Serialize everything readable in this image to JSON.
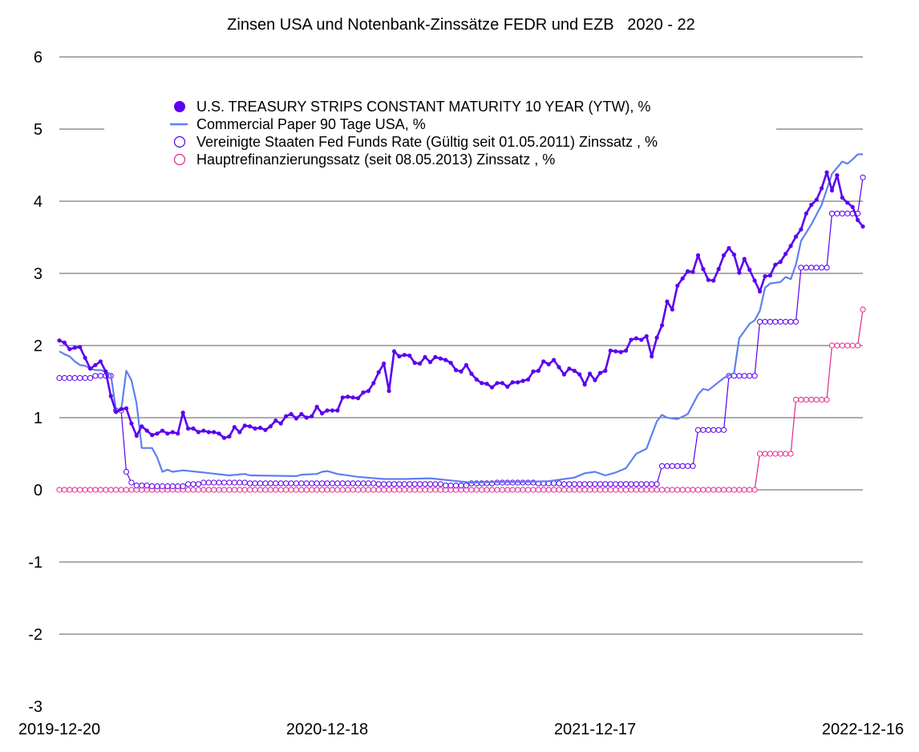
{
  "chart_data": {
    "type": "line",
    "title": "Zinsen USA und Notenbank-Zinssätze FEDR und EZB   2020 - 22",
    "ylim": [
      -3,
      6
    ],
    "yticks": [
      "6",
      "5",
      "4",
      "3",
      "2",
      "1",
      "0",
      "-1",
      "-2",
      "-3"
    ],
    "xlim": [
      "2019-12-20",
      "2022-12-16"
    ],
    "xticks": [
      "2019-12-20",
      "2020-12-18",
      "2021-12-17",
      "2022-12-16"
    ],
    "grid": true,
    "legend_position": "top-center",
    "series": [
      {
        "name": "U.S. TREASURY STRIPS CONSTANT MATURITY 10 YEAR (YTW), %",
        "color": "#5b00f0",
        "style": "line-filled-markers",
        "points": [
          [
            "2019-12-20",
            2.07
          ],
          [
            "2019-12-27",
            2.04
          ],
          [
            "2020-01-03",
            1.95
          ],
          [
            "2020-01-10",
            1.97
          ],
          [
            "2020-01-17",
            1.98
          ],
          [
            "2020-01-24",
            1.83
          ],
          [
            "2020-01-31",
            1.68
          ],
          [
            "2020-02-07",
            1.73
          ],
          [
            "2020-02-14",
            1.78
          ],
          [
            "2020-02-21",
            1.64
          ],
          [
            "2020-02-28",
            1.3
          ],
          [
            "2020-03-06",
            1.08
          ],
          [
            "2020-03-13",
            1.12
          ],
          [
            "2020-03-20",
            1.13
          ],
          [
            "2020-03-27",
            0.92
          ],
          [
            "2020-04-03",
            0.75
          ],
          [
            "2020-04-10",
            0.88
          ],
          [
            "2020-04-17",
            0.82
          ],
          [
            "2020-04-24",
            0.76
          ],
          [
            "2020-05-01",
            0.78
          ],
          [
            "2020-05-08",
            0.82
          ],
          [
            "2020-05-15",
            0.78
          ],
          [
            "2020-05-22",
            0.8
          ],
          [
            "2020-05-29",
            0.78
          ],
          [
            "2020-06-05",
            1.07
          ],
          [
            "2020-06-12",
            0.85
          ],
          [
            "2020-06-19",
            0.85
          ],
          [
            "2020-06-26",
            0.8
          ],
          [
            "2020-07-03",
            0.82
          ],
          [
            "2020-07-10",
            0.8
          ],
          [
            "2020-07-17",
            0.8
          ],
          [
            "2020-07-24",
            0.78
          ],
          [
            "2020-07-31",
            0.72
          ],
          [
            "2020-08-07",
            0.74
          ],
          [
            "2020-08-14",
            0.87
          ],
          [
            "2020-08-21",
            0.8
          ],
          [
            "2020-08-28",
            0.89
          ],
          [
            "2020-09-04",
            0.88
          ],
          [
            "2020-09-11",
            0.85
          ],
          [
            "2020-09-18",
            0.86
          ],
          [
            "2020-09-25",
            0.83
          ],
          [
            "2020-10-02",
            0.88
          ],
          [
            "2020-10-09",
            0.96
          ],
          [
            "2020-10-16",
            0.92
          ],
          [
            "2020-10-23",
            1.02
          ],
          [
            "2020-10-30",
            1.05
          ],
          [
            "2020-11-06",
            0.99
          ],
          [
            "2020-11-13",
            1.05
          ],
          [
            "2020-11-20",
            1.0
          ],
          [
            "2020-11-27",
            1.02
          ],
          [
            "2020-12-04",
            1.15
          ],
          [
            "2020-12-11",
            1.06
          ],
          [
            "2020-12-18",
            1.1
          ],
          [
            "2020-12-25",
            1.1
          ],
          [
            "2021-01-01",
            1.1
          ],
          [
            "2021-01-08",
            1.28
          ],
          [
            "2021-01-15",
            1.29
          ],
          [
            "2021-01-22",
            1.28
          ],
          [
            "2021-01-29",
            1.27
          ],
          [
            "2021-02-05",
            1.35
          ],
          [
            "2021-02-12",
            1.37
          ],
          [
            "2021-02-19",
            1.48
          ],
          [
            "2021-02-26",
            1.63
          ],
          [
            "2021-03-05",
            1.75
          ],
          [
            "2021-03-12",
            1.37
          ],
          [
            "2021-03-19",
            1.92
          ],
          [
            "2021-03-26",
            1.85
          ],
          [
            "2021-04-02",
            1.87
          ],
          [
            "2021-04-09",
            1.86
          ],
          [
            "2021-04-16",
            1.76
          ],
          [
            "2021-04-23",
            1.75
          ],
          [
            "2021-04-30",
            1.84
          ],
          [
            "2021-05-07",
            1.77
          ],
          [
            "2021-05-14",
            1.84
          ],
          [
            "2021-05-21",
            1.82
          ],
          [
            "2021-05-28",
            1.8
          ],
          [
            "2021-06-04",
            1.76
          ],
          [
            "2021-06-11",
            1.66
          ],
          [
            "2021-06-18",
            1.64
          ],
          [
            "2021-06-25",
            1.73
          ],
          [
            "2021-07-02",
            1.61
          ],
          [
            "2021-07-09",
            1.53
          ],
          [
            "2021-07-16",
            1.48
          ],
          [
            "2021-07-23",
            1.47
          ],
          [
            "2021-07-30",
            1.42
          ],
          [
            "2021-08-06",
            1.48
          ],
          [
            "2021-08-13",
            1.48
          ],
          [
            "2021-08-20",
            1.43
          ],
          [
            "2021-08-27",
            1.49
          ],
          [
            "2021-09-03",
            1.49
          ],
          [
            "2021-09-10",
            1.51
          ],
          [
            "2021-09-17",
            1.53
          ],
          [
            "2021-09-24",
            1.64
          ],
          [
            "2021-10-01",
            1.65
          ],
          [
            "2021-10-08",
            1.78
          ],
          [
            "2021-10-15",
            1.74
          ],
          [
            "2021-10-22",
            1.8
          ],
          [
            "2021-10-29",
            1.7
          ],
          [
            "2021-11-05",
            1.6
          ],
          [
            "2021-11-12",
            1.68
          ],
          [
            "2021-11-19",
            1.65
          ],
          [
            "2021-11-26",
            1.6
          ],
          [
            "2021-12-03",
            1.46
          ],
          [
            "2021-12-10",
            1.61
          ],
          [
            "2021-12-17",
            1.52
          ],
          [
            "2021-12-24",
            1.62
          ],
          [
            "2021-12-31",
            1.65
          ],
          [
            "2022-01-07",
            1.93
          ],
          [
            "2022-01-14",
            1.92
          ],
          [
            "2022-01-21",
            1.91
          ],
          [
            "2022-01-28",
            1.93
          ],
          [
            "2022-02-04",
            2.08
          ],
          [
            "2022-02-11",
            2.1
          ],
          [
            "2022-02-18",
            2.08
          ],
          [
            "2022-02-25",
            2.13
          ],
          [
            "2022-03-04",
            1.85
          ],
          [
            "2022-03-11",
            2.11
          ],
          [
            "2022-03-18",
            2.28
          ],
          [
            "2022-03-25",
            2.61
          ],
          [
            "2022-04-01",
            2.5
          ],
          [
            "2022-04-08",
            2.83
          ],
          [
            "2022-04-15",
            2.93
          ],
          [
            "2022-04-22",
            3.03
          ],
          [
            "2022-04-29",
            3.02
          ],
          [
            "2022-05-06",
            3.25
          ],
          [
            "2022-05-13",
            3.06
          ],
          [
            "2022-05-20",
            2.91
          ],
          [
            "2022-05-27",
            2.9
          ],
          [
            "2022-06-03",
            3.06
          ],
          [
            "2022-06-10",
            3.25
          ],
          [
            "2022-06-17",
            3.35
          ],
          [
            "2022-06-24",
            3.26
          ],
          [
            "2022-07-01",
            3.01
          ],
          [
            "2022-07-08",
            3.2
          ],
          [
            "2022-07-15",
            3.05
          ],
          [
            "2022-07-22",
            2.9
          ],
          [
            "2022-07-29",
            2.75
          ],
          [
            "2022-08-05",
            2.96
          ],
          [
            "2022-08-12",
            2.97
          ],
          [
            "2022-08-19",
            3.12
          ],
          [
            "2022-08-26",
            3.16
          ],
          [
            "2022-09-02",
            3.27
          ],
          [
            "2022-09-09",
            3.38
          ],
          [
            "2022-09-16",
            3.51
          ],
          [
            "2022-09-23",
            3.61
          ],
          [
            "2022-09-30",
            3.83
          ],
          [
            "2022-10-07",
            3.95
          ],
          [
            "2022-10-14",
            4.02
          ],
          [
            "2022-10-21",
            4.18
          ],
          [
            "2022-10-28",
            4.4
          ],
          [
            "2022-11-04",
            4.15
          ],
          [
            "2022-11-11",
            4.36
          ],
          [
            "2022-11-18",
            4.05
          ],
          [
            "2022-11-25",
            3.98
          ],
          [
            "2022-12-02",
            3.92
          ],
          [
            "2022-12-09",
            3.74
          ],
          [
            "2022-12-16",
            3.65
          ]
        ]
      },
      {
        "name": "Commercial Paper 90 Tage USA, %",
        "color": "#5f7ff2",
        "style": "line",
        "points": [
          [
            "2019-12-20",
            1.92
          ],
          [
            "2019-12-27",
            1.88
          ],
          [
            "2020-01-03",
            1.85
          ],
          [
            "2020-01-10",
            1.78
          ],
          [
            "2020-01-17",
            1.73
          ],
          [
            "2020-01-24",
            1.72
          ],
          [
            "2020-01-31",
            1.68
          ],
          [
            "2020-02-07",
            1.66
          ],
          [
            "2020-02-14",
            1.66
          ],
          [
            "2020-02-21",
            1.64
          ],
          [
            "2020-02-28",
            1.6
          ],
          [
            "2020-03-06",
            1.1
          ],
          [
            "2020-03-13",
            1.1
          ],
          [
            "2020-03-20",
            1.65
          ],
          [
            "2020-03-27",
            1.52
          ],
          [
            "2020-04-03",
            1.2
          ],
          [
            "2020-04-10",
            0.58
          ],
          [
            "2020-04-17",
            0.58
          ],
          [
            "2020-04-24",
            0.58
          ],
          [
            "2020-05-01",
            0.45
          ],
          [
            "2020-05-08",
            0.25
          ],
          [
            "2020-05-15",
            0.28
          ],
          [
            "2020-05-22",
            0.25
          ],
          [
            "2020-06-05",
            0.27
          ],
          [
            "2020-07-03",
            0.24
          ],
          [
            "2020-08-07",
            0.2
          ],
          [
            "2020-08-28",
            0.22
          ],
          [
            "2020-09-04",
            0.2
          ],
          [
            "2020-11-06",
            0.19
          ],
          [
            "2020-11-13",
            0.21
          ],
          [
            "2020-12-04",
            0.22
          ],
          [
            "2020-12-11",
            0.25
          ],
          [
            "2020-12-18",
            0.26
          ],
          [
            "2021-01-01",
            0.22
          ],
          [
            "2021-01-29",
            0.18
          ],
          [
            "2021-03-05",
            0.15
          ],
          [
            "2021-04-02",
            0.15
          ],
          [
            "2021-05-07",
            0.16
          ],
          [
            "2021-06-04",
            0.13
          ],
          [
            "2021-07-02",
            0.1
          ],
          [
            "2021-08-06",
            0.11
          ],
          [
            "2021-09-10",
            0.11
          ],
          [
            "2021-10-15",
            0.12
          ],
          [
            "2021-11-05",
            0.15
          ],
          [
            "2021-11-19",
            0.17
          ],
          [
            "2021-12-03",
            0.23
          ],
          [
            "2021-12-17",
            0.25
          ],
          [
            "2021-12-31",
            0.2
          ],
          [
            "2022-01-14",
            0.24
          ],
          [
            "2022-01-28",
            0.3
          ],
          [
            "2022-02-11",
            0.5
          ],
          [
            "2022-02-25",
            0.57
          ],
          [
            "2022-03-11",
            0.95
          ],
          [
            "2022-03-18",
            1.04
          ],
          [
            "2022-03-25",
            1.0
          ],
          [
            "2022-04-08",
            0.98
          ],
          [
            "2022-04-22",
            1.05
          ],
          [
            "2022-05-06",
            1.32
          ],
          [
            "2022-05-13",
            1.4
          ],
          [
            "2022-05-20",
            1.38
          ],
          [
            "2022-06-10",
            1.55
          ],
          [
            "2022-06-24",
            1.62
          ],
          [
            "2022-07-01",
            2.1
          ],
          [
            "2022-07-15",
            2.3
          ],
          [
            "2022-07-22",
            2.35
          ],
          [
            "2022-07-29",
            2.48
          ],
          [
            "2022-08-05",
            2.8
          ],
          [
            "2022-08-12",
            2.86
          ],
          [
            "2022-08-26",
            2.88
          ],
          [
            "2022-09-02",
            2.95
          ],
          [
            "2022-09-09",
            2.92
          ],
          [
            "2022-09-16",
            3.12
          ],
          [
            "2022-09-23",
            3.45
          ],
          [
            "2022-10-07",
            3.68
          ],
          [
            "2022-10-21",
            3.95
          ],
          [
            "2022-11-04",
            4.38
          ],
          [
            "2022-11-18",
            4.55
          ],
          [
            "2022-11-25",
            4.52
          ],
          [
            "2022-12-02",
            4.58
          ],
          [
            "2022-12-09",
            4.65
          ],
          [
            "2022-12-16",
            4.65
          ]
        ]
      },
      {
        "name": "Vereinigte Staaten Fed Funds Rate (Gültig seit 01.05.2011) Zinssatz , %",
        "color": "#5b00f0",
        "style": "line-hollow-markers",
        "steps": [
          [
            "2019-12-20",
            1.55
          ],
          [
            "2020-02-07",
            1.58
          ],
          [
            "2020-02-28",
            1.58
          ],
          [
            "2020-03-06",
            1.1
          ],
          [
            "2020-03-20",
            0.25
          ],
          [
            "2020-03-27",
            0.1
          ],
          [
            "2020-04-03",
            0.06
          ],
          [
            "2020-04-24",
            0.05
          ],
          [
            "2020-06-12",
            0.08
          ],
          [
            "2020-07-03",
            0.1
          ],
          [
            "2020-09-04",
            0.09
          ],
          [
            "2021-02-26",
            0.08
          ],
          [
            "2021-05-28",
            0.06
          ],
          [
            "2021-07-02",
            0.09
          ],
          [
            "2021-08-06",
            0.1
          ],
          [
            "2021-10-01",
            0.09
          ],
          [
            "2021-11-05",
            0.08
          ],
          [
            "2022-03-18",
            0.33
          ],
          [
            "2022-05-06",
            0.83
          ],
          [
            "2022-06-17",
            1.58
          ],
          [
            "2022-07-29",
            2.33
          ],
          [
            "2022-09-23",
            3.08
          ],
          [
            "2022-11-04",
            3.83
          ],
          [
            "2022-12-16",
            4.33
          ]
        ]
      },
      {
        "name": "Hauptrefinanzierungssatz (seit 08.05.2013) Zinssatz , %",
        "color": "#e0288c",
        "style": "line-hollow-markers",
        "steps": [
          [
            "2019-12-20",
            0.0
          ],
          [
            "2022-07-29",
            0.5
          ],
          [
            "2022-09-16",
            1.25
          ],
          [
            "2022-11-04",
            2.0
          ],
          [
            "2022-12-16",
            2.5
          ]
        ]
      }
    ]
  }
}
